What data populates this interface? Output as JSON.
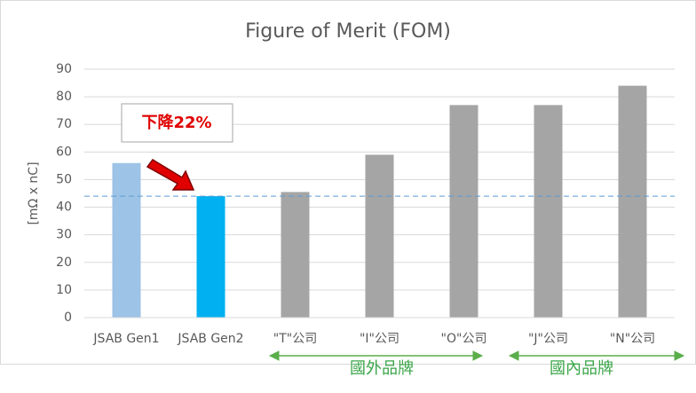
{
  "chart_data": {
    "type": "bar",
    "title": "Figure of Merit (FOM)",
    "y_label": "[mΩ x nC]",
    "categories": [
      "JSAB Gen1",
      "JSAB Gen2",
      "\"T\"公司",
      "\"I\"公司",
      "\"O\"公司",
      "\"J\"公司",
      "\"N\"公司"
    ],
    "values": [
      56,
      44,
      45.5,
      59,
      77,
      77,
      84
    ],
    "colors": [
      "#9dc3e6",
      "#00b0f0",
      "#a5a5a5",
      "#a5a5a5",
      "#a5a5a5",
      "#a5a5a5",
      "#a5a5a5"
    ],
    "ylim": [
      0,
      90
    ],
    "yticks": [
      0,
      10,
      20,
      30,
      40,
      50,
      60,
      70,
      80,
      90
    ],
    "grid": true,
    "reference_line": 44,
    "annotation": "下降22%",
    "groups": [
      "國外品牌",
      "國內品牌"
    ]
  }
}
